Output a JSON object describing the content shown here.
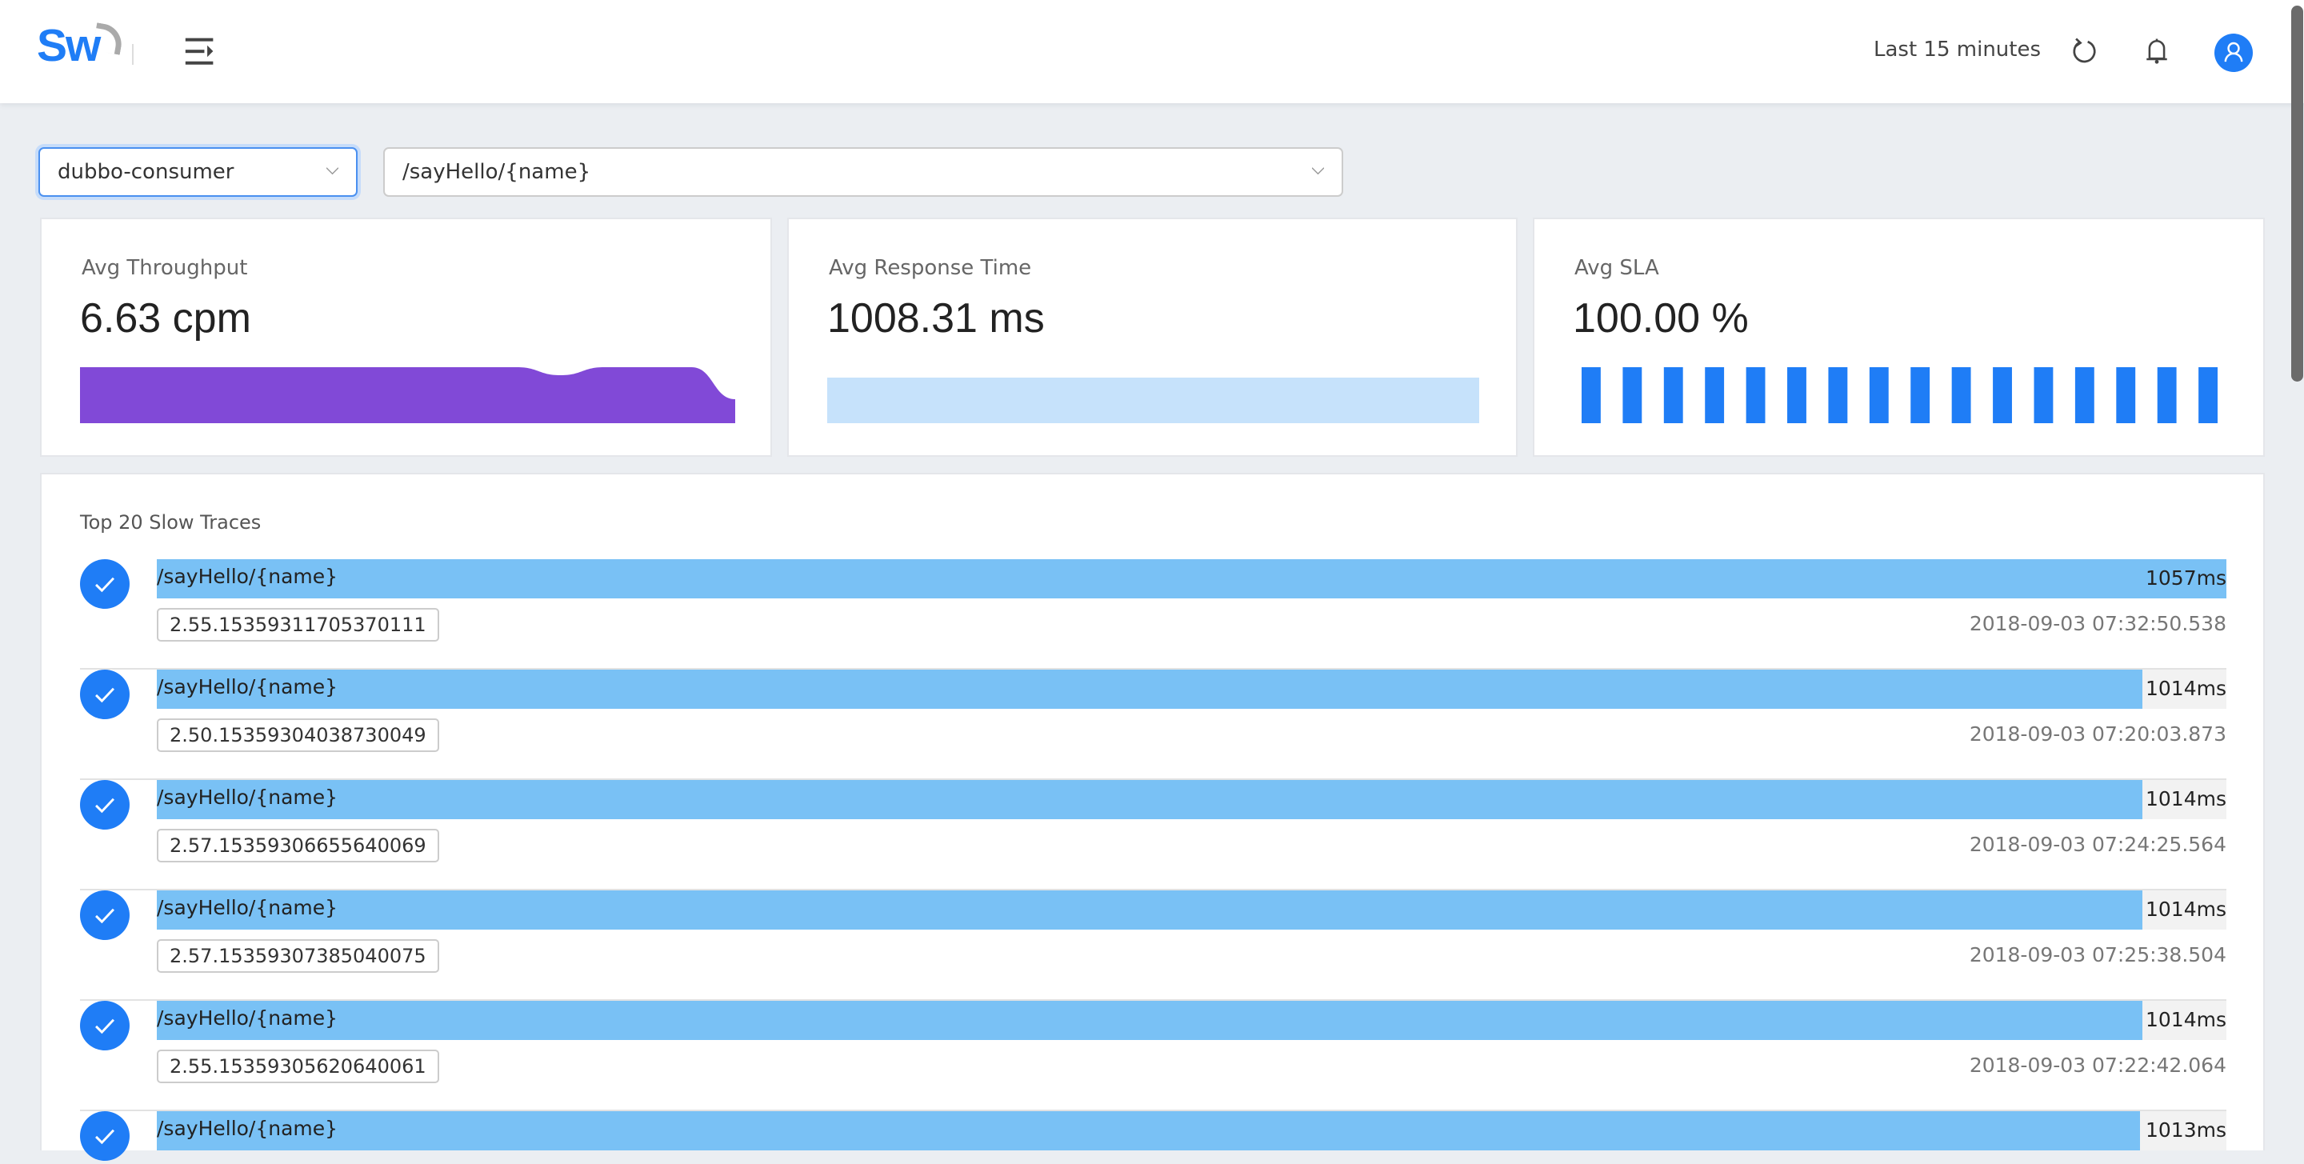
{
  "header": {
    "logo_text": "Sw",
    "time_range": "Last 15 minutes",
    "icons": [
      "menu-fold-icon",
      "refresh-icon",
      "bell-icon",
      "user-icon"
    ],
    "accent_color": "#1f7df6"
  },
  "filters": {
    "service": "dubbo-consumer",
    "endpoint": "/sayHello/{name}"
  },
  "cards": [
    {
      "label": "Avg Throughput",
      "value": "6.63 cpm",
      "color": "#8149d7",
      "sparkline": [
        7,
        7,
        7,
        7,
        7,
        7,
        7,
        7,
        7,
        7,
        7,
        6,
        7,
        7,
        7,
        3
      ]
    },
    {
      "label": "Avg Response Time",
      "value": "1008.31 ms",
      "color": "#c6e2fb",
      "sparkline": [
        1008,
        1008,
        1008,
        1008,
        1008,
        1008,
        1008,
        1008,
        1008,
        1008,
        1008,
        1008,
        1008,
        1008,
        1008,
        1008
      ]
    },
    {
      "label": "Avg SLA",
      "value": "100.00 %",
      "color": "#1f7df6",
      "bars": [
        100,
        100,
        100,
        100,
        100,
        100,
        100,
        100,
        100,
        100,
        100,
        100,
        100,
        100,
        100,
        100
      ]
    }
  ],
  "traces": {
    "title": "Top 20 Slow Traces",
    "bar_color": "#79c1f5",
    "items": [
      {
        "endpoint": "/sayHello/{name}",
        "duration_ms": 1057,
        "duration": "1057ms",
        "trace_id": "2.55.15359311705370111",
        "time": "2018-09-03 07:32:50.538",
        "status": "success"
      },
      {
        "endpoint": "/sayHello/{name}",
        "duration_ms": 1014,
        "duration": "1014ms",
        "trace_id": "2.50.15359304038730049",
        "time": "2018-09-03 07:20:03.873",
        "status": "success"
      },
      {
        "endpoint": "/sayHello/{name}",
        "duration_ms": 1014,
        "duration": "1014ms",
        "trace_id": "2.57.15359306655640069",
        "time": "2018-09-03 07:24:25.564",
        "status": "success"
      },
      {
        "endpoint": "/sayHello/{name}",
        "duration_ms": 1014,
        "duration": "1014ms",
        "trace_id": "2.57.15359307385040075",
        "time": "2018-09-03 07:25:38.504",
        "status": "success"
      },
      {
        "endpoint": "/sayHello/{name}",
        "duration_ms": 1014,
        "duration": "1014ms",
        "trace_id": "2.55.15359305620640061",
        "time": "2018-09-03 07:22:42.064",
        "status": "success"
      },
      {
        "endpoint": "/sayHello/{name}",
        "duration_ms": 1013,
        "duration": "1013ms",
        "status": "success"
      }
    ]
  }
}
